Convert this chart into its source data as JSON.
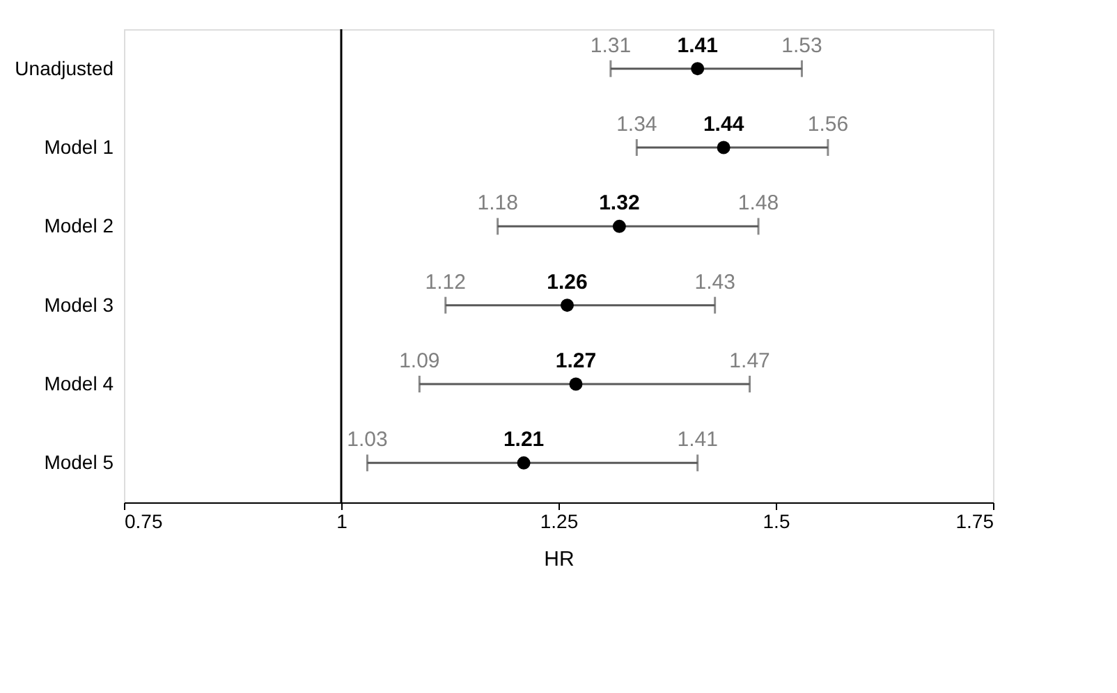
{
  "chart_data": {
    "type": "scatter",
    "orientation": "horizontal",
    "xlabel": "HR",
    "categories": [
      "Unadjusted",
      "Model 1",
      "Model 2",
      "Model 3",
      "Model 4",
      "Model 5"
    ],
    "series": [
      {
        "color": "#000000",
        "values": [
          1.41,
          1.44,
          1.32,
          1.26,
          1.27,
          1.21
        ],
        "errors": [
          [
            1.31,
            1.53
          ],
          [
            1.34,
            1.56
          ],
          [
            1.18,
            1.48
          ],
          [
            1.12,
            1.43
          ],
          [
            1.09,
            1.47
          ],
          [
            1.03,
            1.41
          ]
        ]
      }
    ],
    "data_labels": true,
    "marker": "circle",
    "grid": false,
    "xlim": [
      0.75,
      1.75
    ],
    "xticks": [
      0.75,
      1,
      1.25,
      1.5,
      1.75
    ],
    "ref_lines": [
      {
        "axis": "x",
        "value": 1,
        "color": "#000000"
      }
    ],
    "annotations": [
      {
        "text": "1.31",
        "x": 1.31,
        "y": "Unadjusted"
      },
      {
        "text": "1.53",
        "x": 1.53,
        "y": "Unadjusted"
      },
      {
        "text": "1.34",
        "x": 1.34,
        "y": "Model 1"
      },
      {
        "text": "1.56",
        "x": 1.56,
        "y": "Model 1"
      },
      {
        "text": "1.18",
        "x": 1.18,
        "y": "Model 2"
      },
      {
        "text": "1.48",
        "x": 1.48,
        "y": "Model 2"
      },
      {
        "text": "1.12",
        "x": 1.12,
        "y": "Model 3"
      },
      {
        "text": "1.43",
        "x": 1.43,
        "y": "Model 3"
      },
      {
        "text": "1.09",
        "x": 1.09,
        "y": "Model 4"
      },
      {
        "text": "1.47",
        "x": 1.47,
        "y": "Model 4"
      },
      {
        "text": "1.03",
        "x": 1.03,
        "y": "Model 5"
      },
      {
        "text": "1.41",
        "x": 1.41,
        "y": "Model 5"
      }
    ]
  }
}
